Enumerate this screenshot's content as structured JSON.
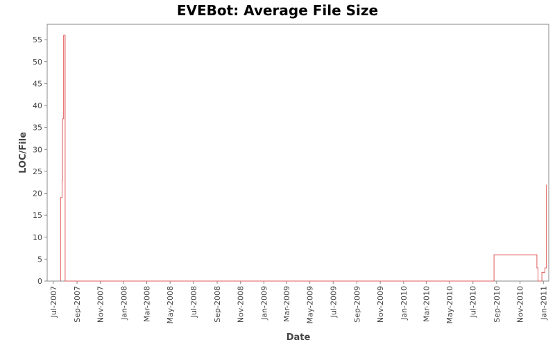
{
  "chart_data": {
    "type": "line",
    "title": "EVEBot: Average File Size",
    "xlabel": "Date",
    "ylabel": "LOC/File",
    "ylim": [
      0,
      58.5
    ],
    "xlim": [
      "2007-06-15",
      "2011-01-15"
    ],
    "yticks": [
      0,
      5,
      10,
      15,
      20,
      25,
      30,
      35,
      40,
      45,
      50,
      55
    ],
    "xticks": [
      {
        "label": "Jul-2007",
        "date": "2007-07-01"
      },
      {
        "label": "Sep-2007",
        "date": "2007-09-01"
      },
      {
        "label": "Nov-2007",
        "date": "2007-11-01"
      },
      {
        "label": "Jan-2008",
        "date": "2008-01-01"
      },
      {
        "label": "Mar-2008",
        "date": "2008-03-01"
      },
      {
        "label": "May-2008",
        "date": "2008-05-01"
      },
      {
        "label": "Jul-2008",
        "date": "2008-07-01"
      },
      {
        "label": "Sep-2008",
        "date": "2008-09-01"
      },
      {
        "label": "Nov-2008",
        "date": "2008-11-01"
      },
      {
        "label": "Jan-2009",
        "date": "2009-01-01"
      },
      {
        "label": "Mar-2009",
        "date": "2009-03-01"
      },
      {
        "label": "May-2009",
        "date": "2009-05-01"
      },
      {
        "label": "Jul-2009",
        "date": "2009-07-01"
      },
      {
        "label": "Sep-2009",
        "date": "2009-09-01"
      },
      {
        "label": "Nov-2009",
        "date": "2009-11-01"
      },
      {
        "label": "Jan-2010",
        "date": "2010-01-01"
      },
      {
        "label": "Mar-2010",
        "date": "2010-03-01"
      },
      {
        "label": "May-2010",
        "date": "2010-05-01"
      },
      {
        "label": "Jul-2010",
        "date": "2010-07-01"
      },
      {
        "label": "Sep-2010",
        "date": "2010-09-01"
      },
      {
        "label": "Nov-2010",
        "date": "2010-11-01"
      },
      {
        "label": "Jan-2011",
        "date": "2011-01-01"
      }
    ],
    "grid": false,
    "series": [
      {
        "color": "#e05a5a",
        "step": true,
        "points": [
          [
            "2007-07-20",
            0
          ],
          [
            "2007-07-20",
            19
          ],
          [
            "2007-07-24",
            19
          ],
          [
            "2007-07-24",
            23
          ],
          [
            "2007-07-25",
            23
          ],
          [
            "2007-07-25",
            37
          ],
          [
            "2007-07-28",
            37
          ],
          [
            "2007-07-28",
            56
          ],
          [
            "2007-08-01",
            56
          ],
          [
            "2007-08-01",
            0
          ],
          [
            "2010-08-25",
            0
          ],
          [
            "2010-08-25",
            6
          ],
          [
            "2010-12-15",
            6
          ],
          [
            "2010-12-15",
            3
          ],
          [
            "2010-12-18",
            3
          ],
          [
            "2010-12-18",
            0
          ],
          [
            "2010-12-28",
            0
          ],
          [
            "2010-12-28",
            2
          ],
          [
            "2011-01-05",
            2
          ],
          [
            "2011-01-05",
            3
          ],
          [
            "2011-01-09",
            3
          ],
          [
            "2011-01-09",
            22
          ]
        ]
      }
    ]
  }
}
